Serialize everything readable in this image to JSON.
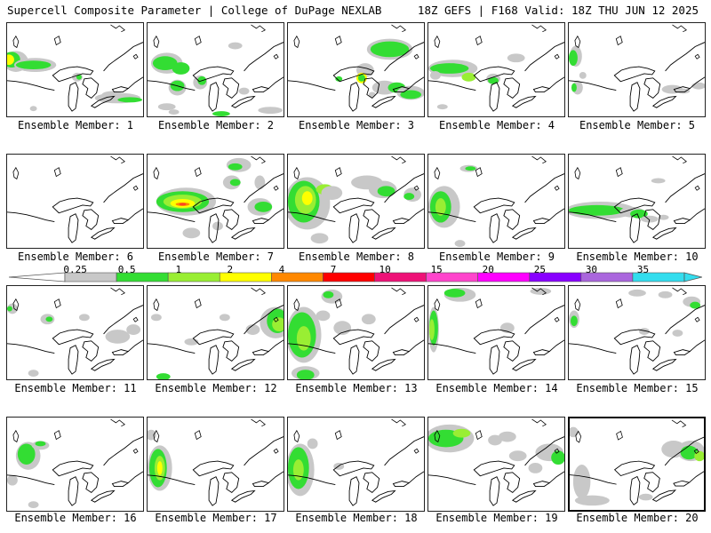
{
  "header": {
    "title_left": "Supercell Composite Parameter | College of DuPage NEXLAB",
    "title_right": "18Z GEFS | F168 Valid: 18Z THU JUN 12 2025"
  },
  "member_label_prefix": "Ensemble Member:",
  "members": [
    {
      "number": "1",
      "selected": false
    },
    {
      "number": "2",
      "selected": false
    },
    {
      "number": "3",
      "selected": false
    },
    {
      "number": "4",
      "selected": false
    },
    {
      "number": "5",
      "selected": false
    },
    {
      "number": "6",
      "selected": false
    },
    {
      "number": "7",
      "selected": false
    },
    {
      "number": "8",
      "selected": false
    },
    {
      "number": "9",
      "selected": false
    },
    {
      "number": "10",
      "selected": false
    },
    {
      "number": "11",
      "selected": false
    },
    {
      "number": "12",
      "selected": false
    },
    {
      "number": "13",
      "selected": false
    },
    {
      "number": "14",
      "selected": false
    },
    {
      "number": "15",
      "selected": false
    },
    {
      "number": "16",
      "selected": false
    },
    {
      "number": "17",
      "selected": false
    },
    {
      "number": "18",
      "selected": false
    },
    {
      "number": "19",
      "selected": false
    },
    {
      "number": "20",
      "selected": true
    }
  ],
  "colorbar": {
    "labels": [
      "0.25",
      "0.5",
      "1",
      "2",
      "4",
      "7",
      "10",
      "15",
      "20",
      "25",
      "30",
      "35"
    ],
    "colors": [
      "#c8c8c8",
      "#33dd33",
      "#99ee33",
      "#ffff00",
      "#ff8800",
      "#ff0000",
      "#ee1177",
      "#ff44cc",
      "#ff00ff",
      "#8800ff",
      "#aa66dd",
      "#33ddee"
    ]
  },
  "colors": {
    "gray": "#c8c8c8",
    "green": "#33dd33",
    "lightgreen": "#99ee33",
    "yellow": "#ffff00",
    "orange": "#ff8800",
    "red": "#ff4422"
  }
}
